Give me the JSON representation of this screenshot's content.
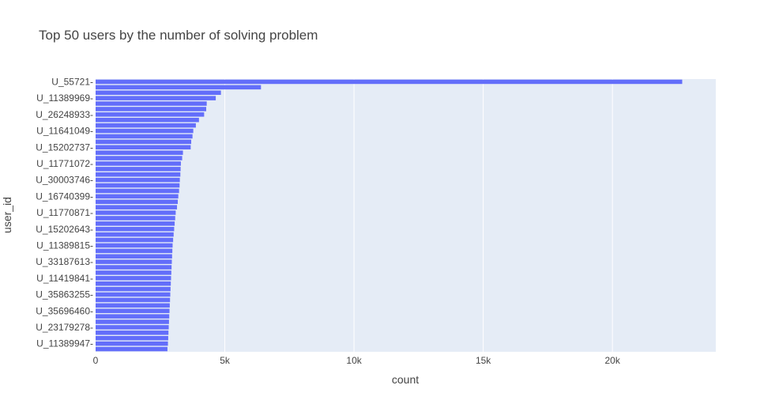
{
  "chart_data": {
    "type": "bar",
    "orientation": "horizontal",
    "title": "Top 50 users by the number of solving problem",
    "xlabel": "count",
    "ylabel": "user_id",
    "xlim": [
      0,
      24000
    ],
    "x_ticks": [
      0,
      5000,
      10000,
      15000,
      20000
    ],
    "x_tick_labels": [
      "0",
      "5k",
      "10k",
      "15k",
      "20k"
    ],
    "grid": true,
    "bar_color": "#636efa",
    "plot_bg": "#e5ecf6",
    "y_tick_labels": [
      {
        "rank": 1,
        "label": "U_55721"
      },
      {
        "rank": 4,
        "label": "U_11389969"
      },
      {
        "rank": 7,
        "label": "U_26248933"
      },
      {
        "rank": 10,
        "label": "U_11641049"
      },
      {
        "rank": 13,
        "label": "U_15202737"
      },
      {
        "rank": 16,
        "label": "U_11771072"
      },
      {
        "rank": 19,
        "label": "U_30003746"
      },
      {
        "rank": 22,
        "label": "U_16740399"
      },
      {
        "rank": 25,
        "label": "U_11770871"
      },
      {
        "rank": 28,
        "label": "U_15202643"
      },
      {
        "rank": 31,
        "label": "U_11389815"
      },
      {
        "rank": 34,
        "label": "U_33187613"
      },
      {
        "rank": 37,
        "label": "U_11419841"
      },
      {
        "rank": 40,
        "label": "U_35863255"
      },
      {
        "rank": 43,
        "label": "U_35696460"
      },
      {
        "rank": 46,
        "label": "U_23179278"
      },
      {
        "rank": 49,
        "label": "U_11389947"
      }
    ],
    "values": [
      22700,
      6400,
      4850,
      4650,
      4300,
      4280,
      4200,
      4000,
      3880,
      3780,
      3750,
      3700,
      3680,
      3380,
      3350,
      3300,
      3290,
      3280,
      3260,
      3250,
      3230,
      3200,
      3180,
      3150,
      3100,
      3080,
      3060,
      3040,
      3020,
      3000,
      2980,
      2970,
      2960,
      2950,
      2940,
      2930,
      2920,
      2910,
      2900,
      2890,
      2880,
      2870,
      2860,
      2850,
      2840,
      2830,
      2820,
      2810,
      2800,
      2780
    ]
  }
}
